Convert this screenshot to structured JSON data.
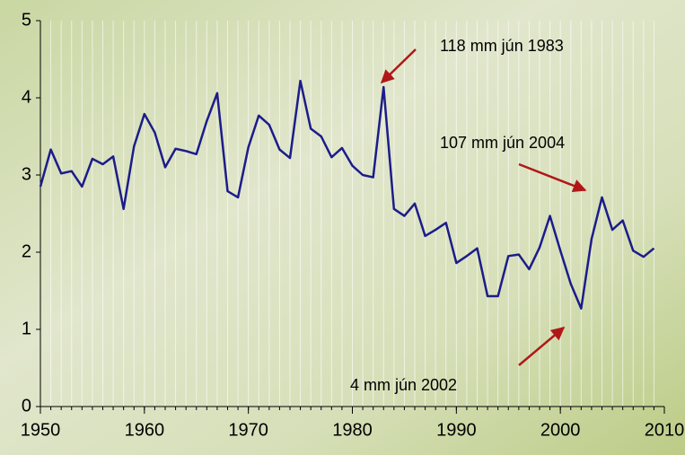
{
  "chart_data": {
    "type": "line",
    "x": [
      1950,
      1951,
      1952,
      1953,
      1954,
      1955,
      1956,
      1957,
      1958,
      1959,
      1960,
      1961,
      1962,
      1963,
      1964,
      1965,
      1966,
      1967,
      1968,
      1969,
      1970,
      1971,
      1972,
      1973,
      1974,
      1975,
      1976,
      1977,
      1978,
      1979,
      1980,
      1981,
      1982,
      1983,
      1984,
      1985,
      1986,
      1987,
      1988,
      1989,
      1990,
      1991,
      1992,
      1993,
      1994,
      1995,
      1996,
      1997,
      1998,
      1999,
      2000,
      2001,
      2002,
      2003,
      2004,
      2005,
      2006,
      2007,
      2008,
      2009
    ],
    "values": [
      2.85,
      3.33,
      3.02,
      3.05,
      2.85,
      3.21,
      3.14,
      3.24,
      2.56,
      3.37,
      3.79,
      3.55,
      3.1,
      3.34,
      3.31,
      3.27,
      3.7,
      4.06,
      2.79,
      2.71,
      3.36,
      3.77,
      3.65,
      3.33,
      3.22,
      4.22,
      3.6,
      3.5,
      3.23,
      3.35,
      3.12,
      3.0,
      2.97,
      4.14,
      2.56,
      2.47,
      2.63,
      2.21,
      2.29,
      2.38,
      1.86,
      1.95,
      2.05,
      1.43,
      1.43,
      1.95,
      1.97,
      1.78,
      2.06,
      2.47,
      2.02,
      1.59,
      1.27,
      2.17,
      2.71,
      2.29,
      2.41,
      2.02,
      1.94,
      2.05
    ],
    "color": "#1c1c8a",
    "xlim": [
      1950,
      2010
    ],
    "xticks": [
      1950,
      1960,
      1970,
      1980,
      1990,
      2000,
      2010
    ],
    "ylim": [
      0,
      5
    ],
    "yticks": [
      0,
      1,
      2,
      3,
      4,
      5
    ],
    "grid": true,
    "annotations": [
      {
        "text": "118 mm jún 1983"
      },
      {
        "text": "107 mm jún 2004"
      },
      {
        "text": "4 mm jún 2002"
      }
    ]
  }
}
